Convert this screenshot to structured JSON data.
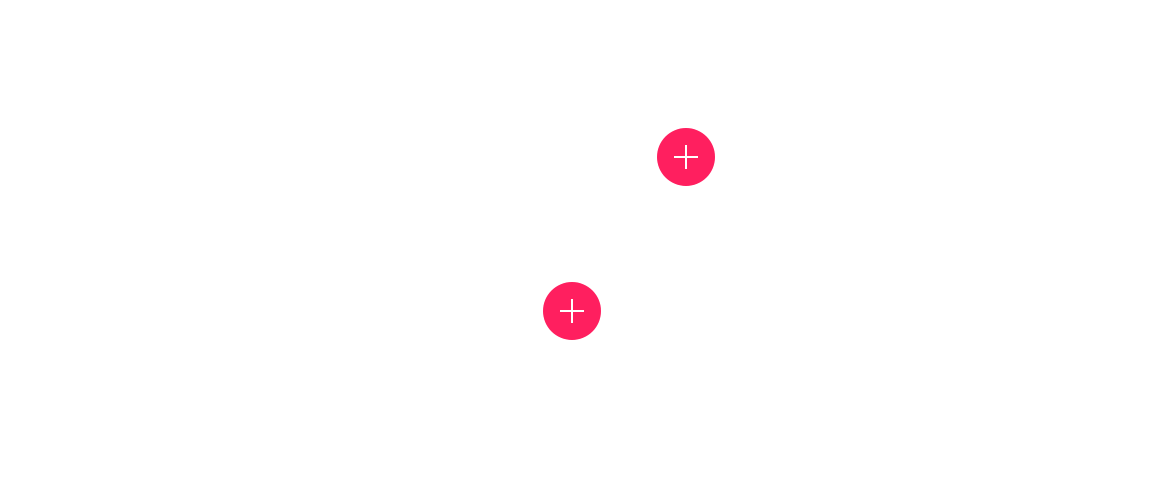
{
  "colors": {
    "background": "#ffffff",
    "fab_fill": "#ff1f5f",
    "icon_stroke": "#ffffff"
  },
  "buttons": [
    {
      "icon": "plus-icon"
    },
    {
      "icon": "plus-icon"
    }
  ]
}
